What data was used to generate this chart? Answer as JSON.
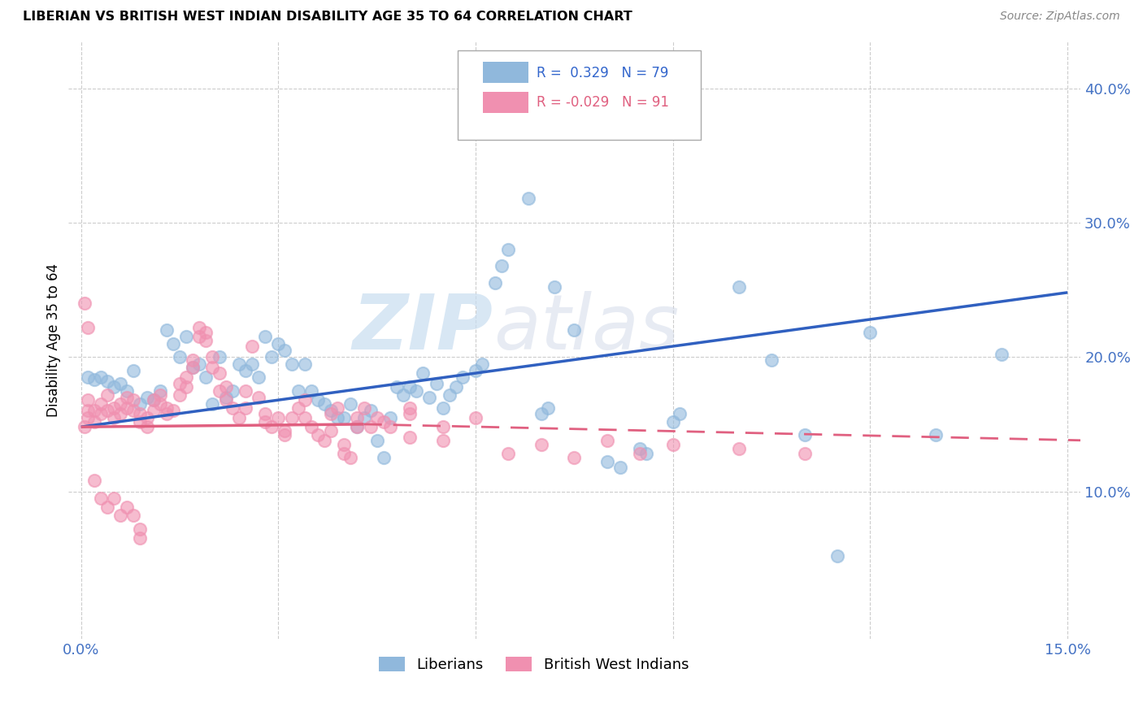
{
  "title": "LIBERIAN VS BRITISH WEST INDIAN DISABILITY AGE 35 TO 64 CORRELATION CHART",
  "source": "Source: ZipAtlas.com",
  "ylabel": "Disability Age 35 to 64",
  "xlim": [
    -0.002,
    0.152
  ],
  "ylim": [
    -0.01,
    0.435
  ],
  "liberian_color": "#90b8dc",
  "bwi_color": "#f090b0",
  "liberian_line_color": "#3060c0",
  "bwi_line_color": "#e06080",
  "R_liberian": 0.329,
  "N_liberian": 79,
  "R_bwi": -0.029,
  "N_bwi": 91,
  "watermark_zip": "ZIP",
  "watermark_atlas": "atlas",
  "legend_labels": [
    "Liberians",
    "British West Indians"
  ],
  "lib_line": [
    0.0,
    0.15,
    0.148,
    0.248
  ],
  "bwi_line_solid": [
    0.0,
    0.043,
    0.148,
    0.15
  ],
  "bwi_line_dash": [
    0.043,
    0.152,
    0.15,
    0.138
  ],
  "liberian_scatter": [
    [
      0.001,
      0.185
    ],
    [
      0.002,
      0.183
    ],
    [
      0.003,
      0.185
    ],
    [
      0.004,
      0.182
    ],
    [
      0.005,
      0.178
    ],
    [
      0.006,
      0.18
    ],
    [
      0.007,
      0.175
    ],
    [
      0.008,
      0.19
    ],
    [
      0.009,
      0.165
    ],
    [
      0.01,
      0.17
    ],
    [
      0.011,
      0.168
    ],
    [
      0.012,
      0.175
    ],
    [
      0.013,
      0.22
    ],
    [
      0.014,
      0.21
    ],
    [
      0.015,
      0.2
    ],
    [
      0.016,
      0.215
    ],
    [
      0.017,
      0.192
    ],
    [
      0.018,
      0.195
    ],
    [
      0.019,
      0.185
    ],
    [
      0.02,
      0.165
    ],
    [
      0.021,
      0.2
    ],
    [
      0.022,
      0.17
    ],
    [
      0.023,
      0.175
    ],
    [
      0.024,
      0.195
    ],
    [
      0.025,
      0.19
    ],
    [
      0.026,
      0.195
    ],
    [
      0.027,
      0.185
    ],
    [
      0.028,
      0.215
    ],
    [
      0.029,
      0.2
    ],
    [
      0.03,
      0.21
    ],
    [
      0.031,
      0.205
    ],
    [
      0.032,
      0.195
    ],
    [
      0.033,
      0.175
    ],
    [
      0.034,
      0.195
    ],
    [
      0.035,
      0.175
    ],
    [
      0.036,
      0.168
    ],
    [
      0.037,
      0.165
    ],
    [
      0.038,
      0.16
    ],
    [
      0.039,
      0.155
    ],
    [
      0.04,
      0.155
    ],
    [
      0.041,
      0.165
    ],
    [
      0.042,
      0.148
    ],
    [
      0.043,
      0.155
    ],
    [
      0.044,
      0.16
    ],
    [
      0.045,
      0.138
    ],
    [
      0.046,
      0.125
    ],
    [
      0.047,
      0.155
    ],
    [
      0.048,
      0.178
    ],
    [
      0.049,
      0.172
    ],
    [
      0.05,
      0.178
    ],
    [
      0.051,
      0.175
    ],
    [
      0.052,
      0.188
    ],
    [
      0.053,
      0.17
    ],
    [
      0.054,
      0.18
    ],
    [
      0.055,
      0.162
    ],
    [
      0.056,
      0.172
    ],
    [
      0.057,
      0.178
    ],
    [
      0.058,
      0.185
    ],
    [
      0.06,
      0.19
    ],
    [
      0.061,
      0.195
    ],
    [
      0.063,
      0.255
    ],
    [
      0.064,
      0.268
    ],
    [
      0.065,
      0.28
    ],
    [
      0.068,
      0.318
    ],
    [
      0.07,
      0.158
    ],
    [
      0.071,
      0.162
    ],
    [
      0.072,
      0.252
    ],
    [
      0.075,
      0.22
    ],
    [
      0.08,
      0.122
    ],
    [
      0.082,
      0.118
    ],
    [
      0.085,
      0.132
    ],
    [
      0.086,
      0.128
    ],
    [
      0.09,
      0.152
    ],
    [
      0.091,
      0.158
    ],
    [
      0.1,
      0.252
    ],
    [
      0.105,
      0.198
    ],
    [
      0.11,
      0.142
    ],
    [
      0.115,
      0.052
    ],
    [
      0.12,
      0.218
    ],
    [
      0.13,
      0.142
    ],
    [
      0.14,
      0.202
    ]
  ],
  "bwi_scatter": [
    [
      0.0005,
      0.148
    ],
    [
      0.001,
      0.155
    ],
    [
      0.001,
      0.16
    ],
    [
      0.001,
      0.168
    ],
    [
      0.002,
      0.152
    ],
    [
      0.002,
      0.16
    ],
    [
      0.003,
      0.165
    ],
    [
      0.003,
      0.158
    ],
    [
      0.004,
      0.172
    ],
    [
      0.004,
      0.16
    ],
    [
      0.005,
      0.162
    ],
    [
      0.005,
      0.155
    ],
    [
      0.006,
      0.165
    ],
    [
      0.006,
      0.158
    ],
    [
      0.007,
      0.17
    ],
    [
      0.007,
      0.162
    ],
    [
      0.008,
      0.168
    ],
    [
      0.008,
      0.16
    ],
    [
      0.009,
      0.158
    ],
    [
      0.009,
      0.152
    ],
    [
      0.01,
      0.148
    ],
    [
      0.01,
      0.155
    ],
    [
      0.011,
      0.168
    ],
    [
      0.011,
      0.16
    ],
    [
      0.012,
      0.172
    ],
    [
      0.012,
      0.165
    ],
    [
      0.013,
      0.162
    ],
    [
      0.013,
      0.158
    ],
    [
      0.014,
      0.16
    ],
    [
      0.015,
      0.172
    ],
    [
      0.015,
      0.18
    ],
    [
      0.016,
      0.185
    ],
    [
      0.016,
      0.178
    ],
    [
      0.017,
      0.192
    ],
    [
      0.017,
      0.198
    ],
    [
      0.018,
      0.215
    ],
    [
      0.018,
      0.222
    ],
    [
      0.019,
      0.218
    ],
    [
      0.019,
      0.212
    ],
    [
      0.02,
      0.2
    ],
    [
      0.02,
      0.192
    ],
    [
      0.021,
      0.188
    ],
    [
      0.021,
      0.175
    ],
    [
      0.022,
      0.178
    ],
    [
      0.022,
      0.168
    ],
    [
      0.023,
      0.162
    ],
    [
      0.024,
      0.155
    ],
    [
      0.025,
      0.175
    ],
    [
      0.025,
      0.162
    ],
    [
      0.026,
      0.208
    ],
    [
      0.027,
      0.17
    ],
    [
      0.028,
      0.158
    ],
    [
      0.028,
      0.152
    ],
    [
      0.029,
      0.148
    ],
    [
      0.03,
      0.155
    ],
    [
      0.031,
      0.145
    ],
    [
      0.031,
      0.142
    ],
    [
      0.032,
      0.155
    ],
    [
      0.033,
      0.162
    ],
    [
      0.034,
      0.168
    ],
    [
      0.034,
      0.155
    ],
    [
      0.035,
      0.148
    ],
    [
      0.036,
      0.142
    ],
    [
      0.037,
      0.138
    ],
    [
      0.038,
      0.145
    ],
    [
      0.038,
      0.158
    ],
    [
      0.039,
      0.162
    ],
    [
      0.04,
      0.135
    ],
    [
      0.04,
      0.128
    ],
    [
      0.041,
      0.125
    ],
    [
      0.042,
      0.155
    ],
    [
      0.042,
      0.148
    ],
    [
      0.043,
      0.162
    ],
    [
      0.044,
      0.148
    ],
    [
      0.045,
      0.155
    ],
    [
      0.046,
      0.152
    ],
    [
      0.047,
      0.148
    ],
    [
      0.05,
      0.162
    ],
    [
      0.05,
      0.14
    ],
    [
      0.05,
      0.158
    ],
    [
      0.055,
      0.148
    ],
    [
      0.055,
      0.138
    ],
    [
      0.06,
      0.155
    ],
    [
      0.065,
      0.128
    ],
    [
      0.07,
      0.135
    ],
    [
      0.075,
      0.125
    ],
    [
      0.08,
      0.138
    ],
    [
      0.085,
      0.128
    ],
    [
      0.09,
      0.135
    ],
    [
      0.1,
      0.132
    ],
    [
      0.11,
      0.128
    ],
    [
      0.0005,
      0.24
    ],
    [
      0.001,
      0.222
    ],
    [
      0.002,
      0.108
    ],
    [
      0.003,
      0.095
    ],
    [
      0.004,
      0.088
    ],
    [
      0.005,
      0.095
    ],
    [
      0.006,
      0.082
    ],
    [
      0.007,
      0.088
    ],
    [
      0.008,
      0.082
    ],
    [
      0.009,
      0.065
    ],
    [
      0.009,
      0.072
    ]
  ]
}
